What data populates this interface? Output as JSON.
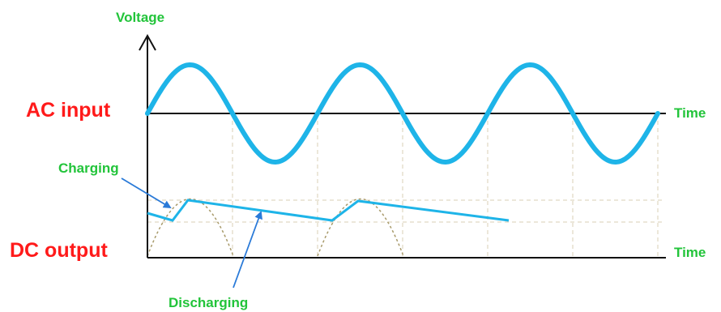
{
  "labels": {
    "voltage": "Voltage",
    "time_top": "Time",
    "time_bottom": "Time",
    "ac_input": "AC input",
    "dc_output": "DC output",
    "charging": "Charging",
    "discharging": "Discharging"
  },
  "colors": {
    "waveform": "#1eb4e8",
    "axis": "#111111",
    "arrow": "#2a7ad8",
    "label_main": "#ff1a1a",
    "label_minor": "#22c43a",
    "grid": "#d8cfb4",
    "rectified": "#a89a6a"
  }
}
